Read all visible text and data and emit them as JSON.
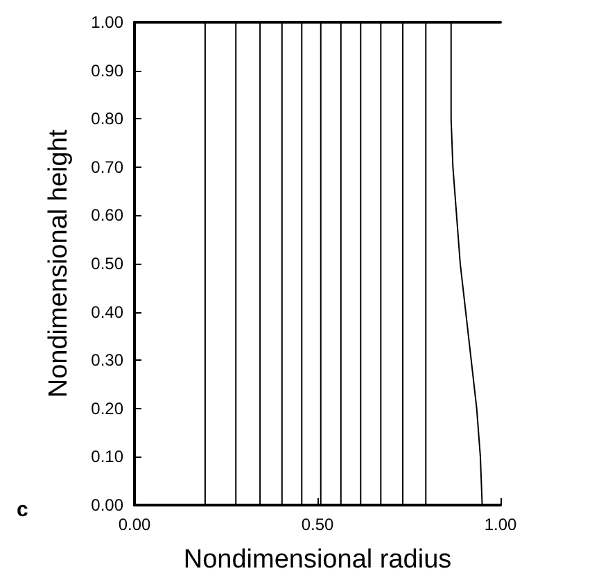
{
  "chart_data": {
    "type": "line",
    "xlabel": "Nondimensional radius",
    "ylabel": "Nondimensional height",
    "annotations": [
      "c"
    ],
    "xlim": [
      0,
      1
    ],
    "ylim": [
      0,
      1
    ],
    "xticks": [
      {
        "value": 0,
        "label": "0.00"
      },
      {
        "value": 0.5,
        "label": "0.50"
      },
      {
        "value": 1,
        "label": "1.00"
      }
    ],
    "yticks": [
      {
        "value": 0,
        "label": "0.00"
      },
      {
        "value": 0.1,
        "label": "0.10"
      },
      {
        "value": 0.2,
        "label": "0.20"
      },
      {
        "value": 0.3,
        "label": "0.30"
      },
      {
        "value": 0.4,
        "label": "0.40"
      },
      {
        "value": 0.5,
        "label": "0.50"
      },
      {
        "value": 0.6,
        "label": "0.60"
      },
      {
        "value": 0.7,
        "label": "0.70"
      },
      {
        "value": 0.8,
        "label": "0.80"
      },
      {
        "value": 0.9,
        "label": "0.90"
      },
      {
        "value": 1,
        "label": "1.00"
      }
    ],
    "grid": false,
    "marker": "none",
    "line_style": "solid",
    "series": [
      {
        "color": "#000000",
        "x": [
          0.193,
          0.193
        ],
        "values": [
          0,
          1
        ]
      },
      {
        "color": "#000000",
        "x": [
          0.277,
          0.277
        ],
        "values": [
          0,
          1
        ]
      },
      {
        "color": "#000000",
        "x": [
          0.343,
          0.343
        ],
        "values": [
          0,
          1
        ]
      },
      {
        "color": "#000000",
        "x": [
          0.403,
          0.403
        ],
        "values": [
          0,
          1
        ]
      },
      {
        "color": "#000000",
        "x": [
          0.457,
          0.457
        ],
        "values": [
          0,
          1
        ]
      },
      {
        "color": "#000000",
        "x": [
          0.509,
          0.509
        ],
        "values": [
          0,
          1
        ]
      },
      {
        "color": "#000000",
        "x": [
          0.564,
          0.564
        ],
        "values": [
          0,
          1
        ]
      },
      {
        "color": "#000000",
        "x": [
          0.618,
          0.618
        ],
        "values": [
          0,
          1
        ]
      },
      {
        "color": "#000000",
        "x": [
          0.673,
          0.673
        ],
        "values": [
          0,
          1
        ]
      },
      {
        "color": "#000000",
        "x": [
          0.733,
          0.733
        ],
        "values": [
          0,
          1
        ]
      },
      {
        "color": "#000000",
        "x": [
          0.796,
          0.796
        ],
        "values": [
          0,
          1
        ]
      },
      {
        "color": "#000000",
        "x": [
          0.95,
          0.945,
          0.935,
          0.92,
          0.905,
          0.89,
          0.88,
          0.87,
          0.865,
          0.865
        ],
        "values": [
          0,
          0.1,
          0.2,
          0.3,
          0.4,
          0.5,
          0.6,
          0.7,
          0.8,
          1
        ]
      }
    ]
  }
}
